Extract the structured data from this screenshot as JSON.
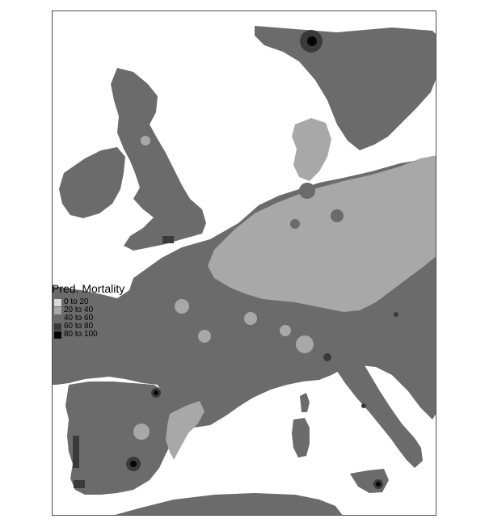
{
  "legend": {
    "title": "Pred. Mortality",
    "items": [
      {
        "label": "0 to 20",
        "color": "#d9d9d9"
      },
      {
        "label": "20 to 40",
        "color": "#a8a8a8"
      },
      {
        "label": "40 to 60",
        "color": "#6b6b6b"
      },
      {
        "label": "60 to 80",
        "color": "#3a3a3a"
      },
      {
        "label": "80 to 100",
        "color": "#050505"
      }
    ]
  },
  "map": {
    "type": "choropleth-raster",
    "region": "Western and Central Europe",
    "colors": {
      "land_default": "#6b6b6b",
      "central_europe": "#a8a8a8",
      "hotspot_dark": "#3a3a3a",
      "hotspot_black": "#050505",
      "sea": "#ffffff"
    }
  }
}
